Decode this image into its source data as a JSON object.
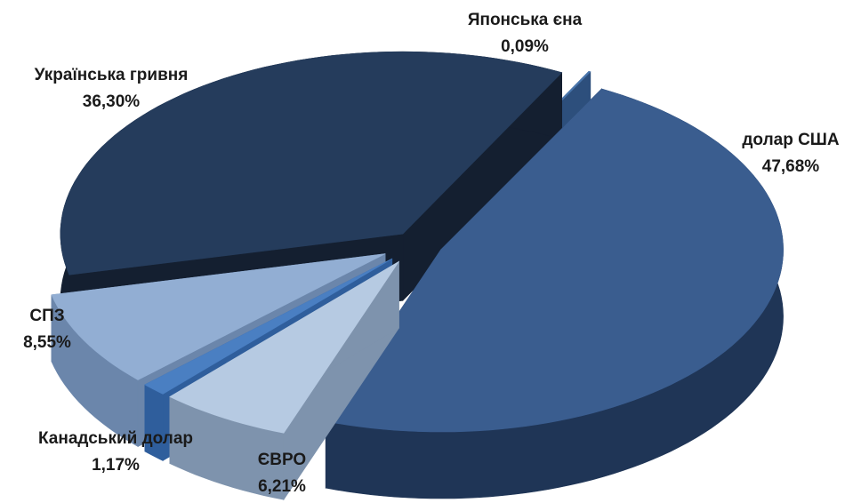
{
  "chart_data": {
    "type": "pie",
    "style": "3d-exploded",
    "slices": [
      {
        "name": "долар США",
        "value": 47.68,
        "label": "47,68%",
        "color_top": "#3a5d8f",
        "color_side": "#1f3556"
      },
      {
        "name": "ЄВРО",
        "value": 6.21,
        "label": "6,21%",
        "color_top": "#b6cae2",
        "color_side": "#7e93ad"
      },
      {
        "name": "Канадський долар",
        "value": 1.17,
        "label": "1,17%",
        "color_top": "#4a7fc2",
        "color_side": "#2f5e9c"
      },
      {
        "name": "СПЗ",
        "value": 8.55,
        "label": "8,55%",
        "color_top": "#92aed3",
        "color_side": "#6b86ab"
      },
      {
        "name": "Українська гривня",
        "value": 36.3,
        "label": "36,30%",
        "color_top": "#253c5c",
        "color_side": "#141f30"
      },
      {
        "name": "Японська єна",
        "value": 0.09,
        "label": "0,09%",
        "color_top": "#4a76ad",
        "color_side": "#2d4f7c"
      }
    ]
  }
}
